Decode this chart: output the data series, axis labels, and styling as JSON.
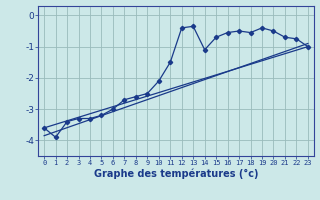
{
  "xlabel": "Graphe des températures (°c)",
  "bg_color": "#cce8e8",
  "line_color": "#1a3a8a",
  "grid_color": "#99bbbb",
  "axis_color": "#334499",
  "xlim": [
    -0.5,
    23.5
  ],
  "ylim": [
    -4.5,
    0.3
  ],
  "yticks": [
    0,
    -1,
    -2,
    -3,
    -4
  ],
  "xticks": [
    0,
    1,
    2,
    3,
    4,
    5,
    6,
    7,
    8,
    9,
    10,
    11,
    12,
    13,
    14,
    15,
    16,
    17,
    18,
    19,
    20,
    21,
    22,
    23
  ],
  "temp_data_x": [
    0,
    1,
    2,
    3,
    4,
    5,
    6,
    7,
    8,
    9,
    10,
    11,
    12,
    13,
    14,
    15,
    16,
    17,
    18,
    19,
    20,
    21,
    22,
    23
  ],
  "temp_data_y": [
    -3.6,
    -3.9,
    -3.4,
    -3.3,
    -3.3,
    -3.2,
    -3.0,
    -2.7,
    -2.6,
    -2.5,
    -2.1,
    -1.5,
    -0.4,
    -0.35,
    -1.1,
    -0.7,
    -0.55,
    -0.5,
    -0.55,
    -0.4,
    -0.5,
    -0.7,
    -0.75,
    -1.0
  ],
  "trend1_x": [
    0,
    23
  ],
  "trend1_y": [
    -3.6,
    -1.0
  ],
  "trend2_x": [
    0,
    23
  ],
  "trend2_y": [
    -3.85,
    -0.9
  ]
}
